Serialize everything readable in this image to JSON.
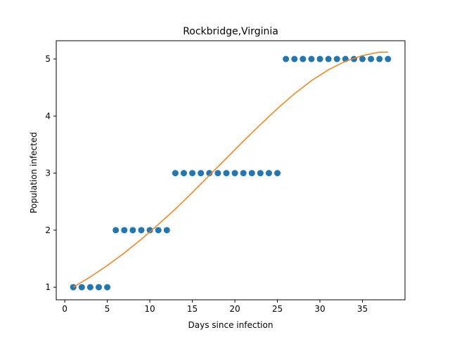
{
  "chart_data": {
    "type": "scatter",
    "title": "Rockbridge,Virginia",
    "xlabel": "Days since infection",
    "ylabel": "Population infected",
    "xlim": [
      -1,
      40
    ],
    "ylim": [
      0.78,
      5.32
    ],
    "xticks": [
      0,
      5,
      10,
      15,
      20,
      25,
      30,
      35
    ],
    "yticks": [
      1,
      2,
      3,
      4,
      5
    ],
    "grid": false,
    "series": [
      {
        "kind": "scatter",
        "color": "#1f77b4",
        "x": [
          1,
          2,
          3,
          4,
          5,
          6,
          7,
          8,
          9,
          10,
          11,
          12,
          13,
          14,
          15,
          16,
          17,
          18,
          19,
          20,
          21,
          22,
          23,
          24,
          25,
          26,
          27,
          28,
          29,
          30,
          31,
          32,
          33,
          34,
          35,
          36,
          37,
          38
        ],
        "y": [
          1,
          1,
          1,
          1,
          1,
          2,
          2,
          2,
          2,
          2,
          2,
          2,
          3,
          3,
          3,
          3,
          3,
          3,
          3,
          3,
          3,
          3,
          3,
          3,
          3,
          5,
          5,
          5,
          5,
          5,
          5,
          5,
          5,
          5,
          5,
          5,
          5,
          5
        ]
      },
      {
        "kind": "line",
        "color": "#ff7f0e",
        "x": [
          1,
          3,
          5,
          7,
          9,
          11,
          13,
          15,
          17,
          19,
          21,
          23,
          25,
          27,
          29,
          31,
          33,
          35,
          37,
          38
        ],
        "y": [
          1.0,
          1.18,
          1.38,
          1.6,
          1.84,
          2.1,
          2.37,
          2.66,
          2.96,
          3.26,
          3.56,
          3.85,
          4.13,
          4.39,
          4.62,
          4.81,
          4.96,
          5.06,
          5.12,
          5.12
        ]
      }
    ]
  }
}
